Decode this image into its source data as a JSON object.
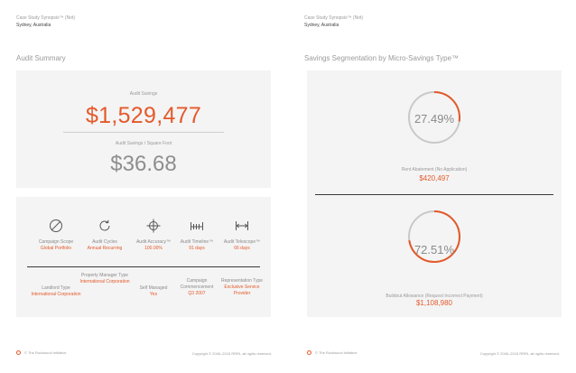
{
  "left_page": {
    "header_title": "Case Study Synopsis™ (Not)",
    "header_location": "Sydney, Australia",
    "section_title": "Audit Summary",
    "audit_savings_label": "Audit Savings",
    "audit_savings_value": "$1,529,477",
    "per_sqft_label": "Audit Savings / Square Foot",
    "per_sqft_value": "$36.68",
    "metrics_row1": [
      {
        "icon": "compass-icon",
        "label": "Campaign Scope",
        "value": "Global Portfolio"
      },
      {
        "icon": "refresh-cycle-icon",
        "label": "Audit Cycles",
        "value": "Annual Recurring"
      },
      {
        "icon": "crosshair-icon",
        "label": "Audit Accuracy™",
        "value": "100.00%"
      },
      {
        "icon": "timeline-ruler-icon",
        "label": "Audit Timeline™",
        "value": "91 days"
      },
      {
        "icon": "span-arrows-icon",
        "label": "Audit Telescope™",
        "value": "66 days"
      }
    ],
    "metrics_row2": [
      {
        "label": "Landlord Type",
        "value": "International Corporation"
      },
      {
        "label": "Property Manager Type",
        "value": "International Corporation"
      },
      {
        "label": "Self Managed",
        "value": "Yes"
      },
      {
        "label": "Campaign Commencement",
        "value": "Q3 2007"
      },
      {
        "label": "Representation Type",
        "value": "Exclusive Service Provider"
      }
    ],
    "footer_left": "© The Rockwood Initiative",
    "footer_right": "Copyright © 2006–2015 RRRI, all rights reserved."
  },
  "right_page": {
    "header_title": "Case Study Synopsis™ (Not)",
    "header_location": "Sydney, Australia",
    "section_title": "Savings Segmentation by Micro-Savings Type™",
    "segments": [
      {
        "percent_label": "27.49%",
        "percent": 27.49,
        "caption": "Rent Abatement (No Application)",
        "amount": "$420,497"
      },
      {
        "percent_label": "72.51%",
        "percent": 72.51,
        "caption": "Buildout Allowance (Request Incorrect Payment)",
        "amount": "$1,108,980"
      }
    ],
    "footer_left": "© The Rockwood Initiative",
    "footer_right": "Copyright © 2006–2015 RRRI, all rights reserved."
  },
  "colors": {
    "accent": "#e35a2b",
    "ring_track": "#c9c9c9",
    "panel_bg": "#f4f4f4"
  }
}
